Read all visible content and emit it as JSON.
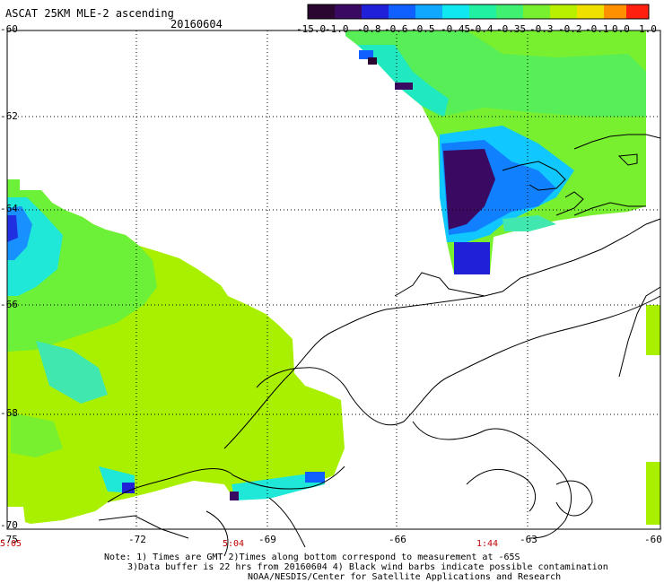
{
  "header": {
    "title": "ASCAT 25KM MLE-2 ascending",
    "date": "20160604"
  },
  "colorbar": {
    "labels": [
      "-15.0",
      "-1.0",
      "-0.8",
      "-0.6",
      "-0.5",
      "-0.45",
      "-0.4",
      "-0.35",
      "-0.3",
      "-0.2",
      "-0.1",
      "0.0",
      "1.0"
    ],
    "colors": [
      "#2a0630",
      "#3a0a62",
      "#2020d8",
      "#1060ff",
      "#10a8ff",
      "#10e8f0",
      "#20f0a0",
      "#40f070",
      "#78f030",
      "#b8f000",
      "#f0e000",
      "#ff9000",
      "#ff2010"
    ]
  },
  "axes": {
    "y_labels": [
      "-60",
      "-62",
      "-64",
      "-66",
      "-68",
      "-70"
    ],
    "x_labels": [
      "-75",
      "-72",
      "-69",
      "-66",
      "-63",
      "-60"
    ]
  },
  "gmt_times": [
    "5:05",
    "5:04",
    "1:44"
  ],
  "notes": [
    "Note: 1) Times are GMT 2)Times along bottom correspond to measurement at -65S",
    "3)Data buffer is 22 hrs from 20160604 4) Black wind barbs indicate possible contamination",
    "NOAA/NESDIS/Center for Satellite Applications and Research"
  ]
}
